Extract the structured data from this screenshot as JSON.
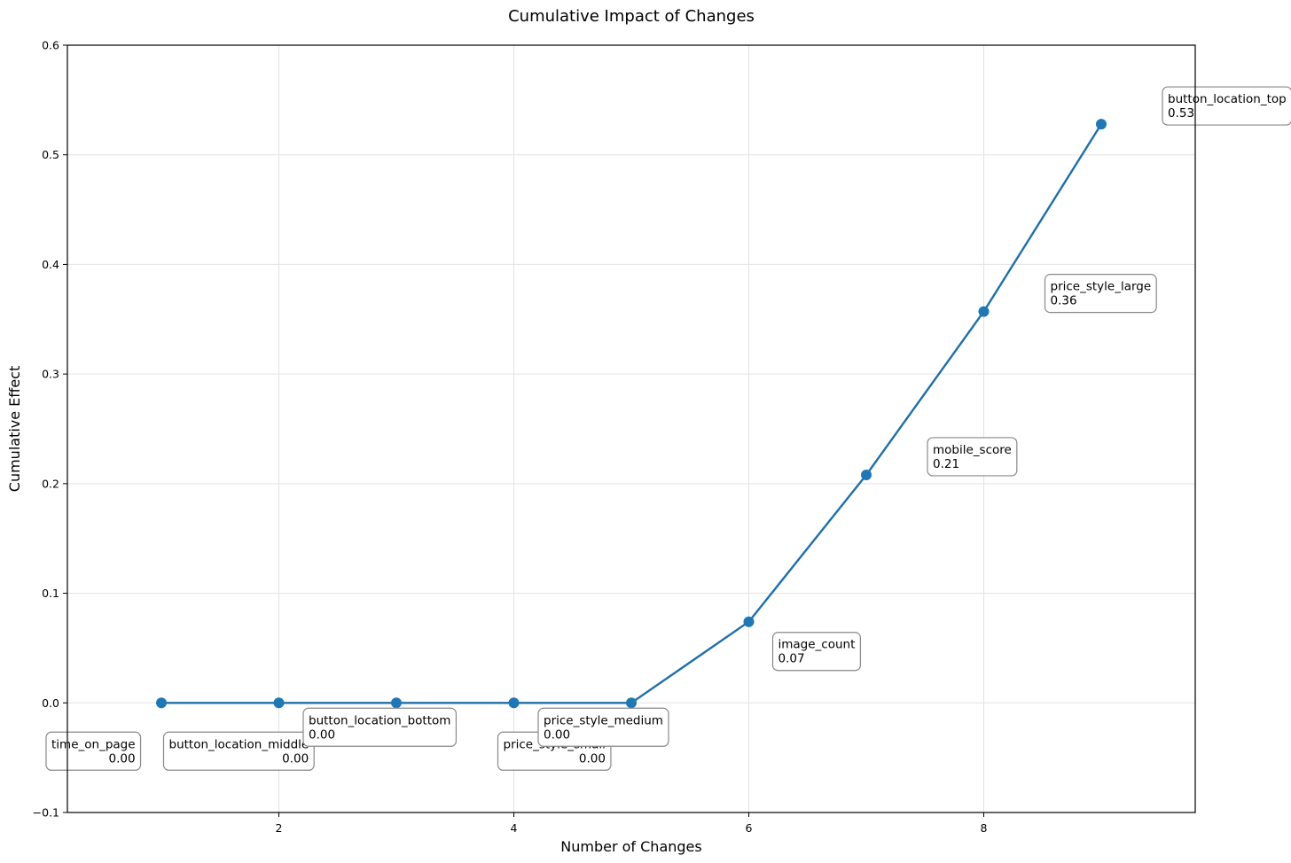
{
  "chart_data": {
    "type": "line",
    "title": "Cumulative Impact of Changes",
    "xlabel": "Number of Changes",
    "ylabel": "Cumulative Effect",
    "xlim": [
      0.2,
      9.8
    ],
    "ylim": [
      -0.1,
      0.6
    ],
    "xticks": [
      2,
      4,
      6,
      8
    ],
    "yticks": [
      -0.1,
      0.0,
      0.1,
      0.2,
      0.3,
      0.4,
      0.5,
      0.6
    ],
    "ytick_labels": [
      "−0.1",
      "0.0",
      "0.1",
      "0.2",
      "0.3",
      "0.4",
      "0.5",
      "0.6"
    ],
    "grid": true,
    "line_color": "#1f6fa8",
    "marker_color": "#1f77b4",
    "x": [
      1,
      2,
      3,
      4,
      5,
      6,
      7,
      8,
      9
    ],
    "y": [
      0.0,
      0.0,
      0.0,
      0.0,
      0.0,
      0.074,
      0.208,
      0.357,
      0.528
    ],
    "annotations": [
      {
        "label": "time_on_page",
        "value": "0.00",
        "x": 1,
        "y": 0.0
      },
      {
        "label": "button_location_middle",
        "value": "0.00",
        "x": 2,
        "y": 0.0
      },
      {
        "label": "button_location_bottom",
        "value": "0.00",
        "x": 3,
        "y": 0.0
      },
      {
        "label": "price_style_small",
        "value": "0.00",
        "x": 4,
        "y": 0.0
      },
      {
        "label": "price_style_medium",
        "value": "0.00",
        "x": 5,
        "y": 0.0
      },
      {
        "label": "image_count",
        "value": "0.07",
        "x": 6,
        "y": 0.074
      },
      {
        "label": "mobile_score",
        "value": "0.21",
        "x": 7,
        "y": 0.208
      },
      {
        "label": "price_style_large",
        "value": "0.36",
        "x": 8,
        "y": 0.357
      },
      {
        "label": "button_location_top",
        "value": "0.53",
        "x": 9,
        "y": 0.528
      }
    ]
  }
}
